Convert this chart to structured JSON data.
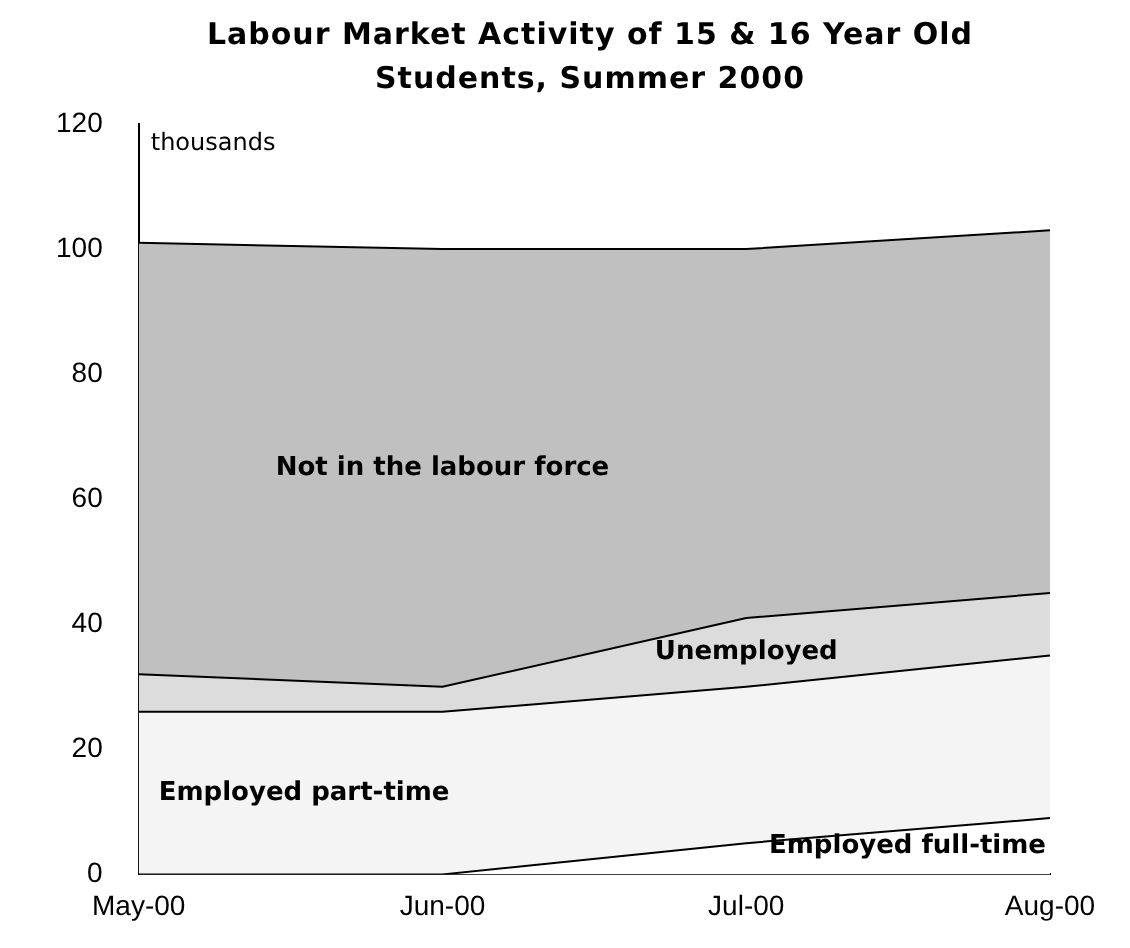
{
  "chart_data": {
    "type": "area",
    "title": "Labour Market Activity of 15 & 16 Year Old Students, Summer 2000",
    "ylabel": "thousands",
    "categories": [
      "May-00",
      "Jun-00",
      "Jul-00",
      "Aug-00"
    ],
    "stacked": true,
    "series": [
      {
        "name": "Employed full-time",
        "color": "#ffffff",
        "values": [
          0,
          0,
          5,
          9
        ]
      },
      {
        "name": "Employed part-time",
        "color": "#f4f4f4",
        "values": [
          26,
          26,
          25,
          26
        ]
      },
      {
        "name": "Unemployed",
        "color": "#dcdcdc",
        "values": [
          6,
          4,
          11,
          10
        ]
      },
      {
        "name": "Not in the labour force",
        "color": "#c0c0c0",
        "values": [
          69,
          70,
          59,
          58
        ]
      }
    ],
    "ylim": [
      0,
      120
    ],
    "yticks": [
      0,
      20,
      40,
      60,
      80,
      100,
      120
    ],
    "grid": false,
    "legend": false
  }
}
